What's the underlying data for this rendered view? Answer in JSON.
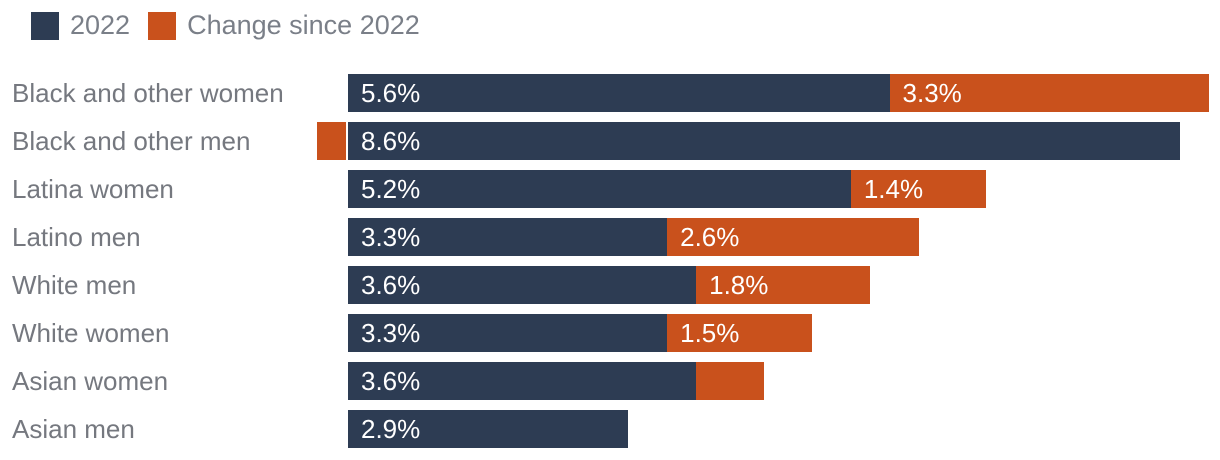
{
  "legend": {
    "items": [
      {
        "label": "2022",
        "color": "#2d3c53"
      },
      {
        "label": "Change since 2022",
        "color": "#c9511c"
      }
    ]
  },
  "chart_data": {
    "type": "bar",
    "orientation": "horizontal",
    "stacked": true,
    "title": "",
    "unit": "%",
    "legend_position": "top",
    "grid": false,
    "axes_visible": false,
    "categories": [
      "Black and other women",
      "Black and other men",
      "Latina women",
      "Latino men",
      "White men",
      "White women",
      "Asian women",
      "Asian men"
    ],
    "series": [
      {
        "name": "2022",
        "color": "#2d3c53",
        "values": [
          5.6,
          8.6,
          5.2,
          3.3,
          3.6,
          3.3,
          3.6,
          2.9
        ]
      },
      {
        "name": "Change since 2022",
        "color": "#c9511c",
        "values": [
          3.3,
          -0.3,
          1.4,
          2.6,
          1.8,
          1.5,
          0.7,
          0
        ]
      }
    ],
    "value_labels": [
      "5.6%",
      "8.6%",
      "5.2%",
      "3.3%",
      "3.6%",
      "3.3%",
      "3.6%",
      "2.9%"
    ],
    "change_labels": [
      "3.3%",
      "",
      "1.4%",
      "2.6%",
      "1.8%",
      "1.5%",
      "",
      ""
    ]
  },
  "colors": {
    "category_label": "#75787f",
    "legend_label": "#7a7f88",
    "bar_value_text": "#ffffff",
    "background": "#ffffff"
  }
}
